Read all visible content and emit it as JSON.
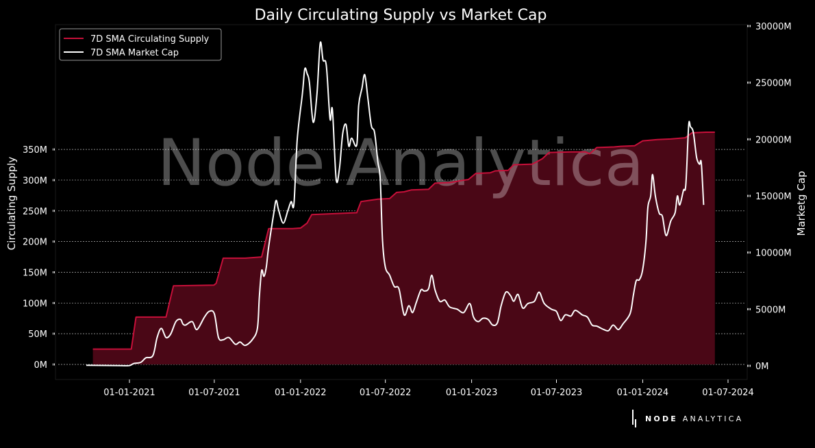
{
  "watermark": "Node Analytica",
  "branding": {
    "bold": "NODE",
    "light": "ANALYTICA"
  },
  "colors": {
    "supply": "#c8103a",
    "supply_fill": "#4a0716",
    "market_cap": "#ffffff",
    "background": "#000000"
  },
  "chart_data": {
    "type": "line",
    "title": "Daily Circulating Supply vs Market Cap",
    "ylabel": "Circulating Supply",
    "y2label": "Marketg Cap",
    "legend_position": "top-left",
    "grid": "horizontal dashed",
    "xticks": [
      "01-01-2021",
      "01-07-2021",
      "01-01-2022",
      "01-07-2022",
      "01-01-2023",
      "01-07-2023",
      "01-01-2024",
      "01-07-2024"
    ],
    "yticks": [
      "0M",
      "50M",
      "100M",
      "150M",
      "200M",
      "250M",
      "300M",
      "350M"
    ],
    "y2ticks": [
      "0M",
      "5000M",
      "10000M",
      "15000M",
      "20000M",
      "25000M",
      "30000M"
    ],
    "ylim": [
      0,
      390
    ],
    "y2lim": [
      0,
      30000
    ],
    "xlim": [
      "2020-09-25",
      "2024-06-30"
    ],
    "series": [
      {
        "name": "7D SMA Circulating Supply",
        "axis": "left",
        "fill": true,
        "points": [
          [
            "2020-10-15",
            25
          ],
          [
            "2020-12-20",
            25
          ],
          [
            "2021-01-05",
            25
          ],
          [
            "2021-01-15",
            77
          ],
          [
            "2021-02-15",
            77
          ],
          [
            "2021-03-10",
            77
          ],
          [
            "2021-03-20",
            77
          ],
          [
            "2021-04-05",
            128
          ],
          [
            "2021-06-30",
            129
          ],
          [
            "2021-07-05",
            132
          ],
          [
            "2021-07-20",
            173
          ],
          [
            "2021-09-05",
            173
          ],
          [
            "2021-10-10",
            175
          ],
          [
            "2021-10-25",
            221
          ],
          [
            "2021-12-15",
            221
          ],
          [
            "2022-01-01",
            222
          ],
          [
            "2022-01-15",
            230
          ],
          [
            "2022-01-25",
            244
          ],
          [
            "2022-05-01",
            247
          ],
          [
            "2022-05-10",
            265
          ],
          [
            "2022-06-15",
            269
          ],
          [
            "2022-07-10",
            270
          ],
          [
            "2022-07-25",
            280
          ],
          [
            "2022-08-10",
            281
          ],
          [
            "2022-08-25",
            284
          ],
          [
            "2022-10-01",
            285
          ],
          [
            "2022-10-15",
            295
          ],
          [
            "2022-11-15",
            296
          ],
          [
            "2022-12-15",
            300
          ],
          [
            "2022-12-25",
            301
          ],
          [
            "2023-01-10",
            311
          ],
          [
            "2023-02-10",
            312
          ],
          [
            "2023-02-20",
            315
          ],
          [
            "2023-03-20",
            316
          ],
          [
            "2023-04-01",
            325
          ],
          [
            "2023-05-10",
            326
          ],
          [
            "2023-05-20",
            330
          ],
          [
            "2023-06-01",
            335
          ],
          [
            "2023-06-15",
            345
          ],
          [
            "2023-08-01",
            346
          ],
          [
            "2023-09-01",
            346
          ],
          [
            "2023-09-10",
            343
          ],
          [
            "2023-09-25",
            353
          ],
          [
            "2023-11-01",
            354
          ],
          [
            "2023-11-15",
            355
          ],
          [
            "2023-12-15",
            356
          ],
          [
            "2024-01-01",
            364
          ],
          [
            "2024-02-01",
            366
          ],
          [
            "2024-03-01",
            367
          ],
          [
            "2024-04-01",
            369
          ],
          [
            "2024-04-15",
            377
          ],
          [
            "2024-05-15",
            378
          ],
          [
            "2024-06-03",
            378
          ]
        ]
      },
      {
        "name": "7D SMA Market Cap",
        "axis": "right",
        "fill": false,
        "points": [
          [
            "2020-10-01",
            50
          ],
          [
            "2020-12-15",
            20
          ],
          [
            "2021-01-01",
            20
          ],
          [
            "2021-01-10",
            200
          ],
          [
            "2021-01-25",
            300
          ],
          [
            "2021-02-05",
            700
          ],
          [
            "2021-02-20",
            900
          ],
          [
            "2021-03-01",
            2500
          ],
          [
            "2021-03-10",
            3300
          ],
          [
            "2021-03-20",
            2500
          ],
          [
            "2021-03-30",
            2800
          ],
          [
            "2021-04-10",
            3900
          ],
          [
            "2021-04-20",
            4100
          ],
          [
            "2021-04-25",
            3700
          ],
          [
            "2021-05-01",
            3600
          ],
          [
            "2021-05-15",
            3900
          ],
          [
            "2021-05-25",
            3200
          ],
          [
            "2021-06-10",
            4300
          ],
          [
            "2021-06-20",
            4800
          ],
          [
            "2021-07-01",
            4600
          ],
          [
            "2021-07-10",
            2500
          ],
          [
            "2021-07-20",
            2300
          ],
          [
            "2021-08-01",
            2500
          ],
          [
            "2021-08-15",
            1900
          ],
          [
            "2021-08-25",
            2100
          ],
          [
            "2021-09-05",
            1800
          ],
          [
            "2021-09-20",
            2300
          ],
          [
            "2021-10-01",
            3300
          ],
          [
            "2021-10-05",
            6000
          ],
          [
            "2021-10-10",
            8400
          ],
          [
            "2021-10-15",
            7900
          ],
          [
            "2021-10-20",
            8700
          ],
          [
            "2021-10-25",
            10500
          ],
          [
            "2021-11-05",
            13500
          ],
          [
            "2021-11-10",
            14600
          ],
          [
            "2021-11-15",
            13800
          ],
          [
            "2021-11-25",
            12600
          ],
          [
            "2021-12-05",
            13700
          ],
          [
            "2021-12-12",
            14500
          ],
          [
            "2021-12-18",
            14300
          ],
          [
            "2021-12-25",
            20000
          ],
          [
            "2022-01-05",
            24000
          ],
          [
            "2022-01-10",
            26200
          ],
          [
            "2022-01-15",
            25800
          ],
          [
            "2022-01-20",
            25000
          ],
          [
            "2022-01-28",
            21500
          ],
          [
            "2022-02-05",
            24000
          ],
          [
            "2022-02-12",
            28500
          ],
          [
            "2022-02-18",
            27000
          ],
          [
            "2022-02-25",
            26500
          ],
          [
            "2022-03-05",
            21800
          ],
          [
            "2022-03-10",
            22600
          ],
          [
            "2022-03-18",
            16500
          ],
          [
            "2022-03-25",
            17400
          ],
          [
            "2022-04-01",
            20500
          ],
          [
            "2022-04-08",
            21300
          ],
          [
            "2022-04-14",
            19400
          ],
          [
            "2022-04-20",
            20100
          ],
          [
            "2022-05-01",
            19500
          ],
          [
            "2022-05-05",
            23000
          ],
          [
            "2022-05-12",
            24500
          ],
          [
            "2022-05-18",
            25700
          ],
          [
            "2022-05-25",
            23500
          ],
          [
            "2022-06-01",
            21200
          ],
          [
            "2022-06-08",
            20600
          ],
          [
            "2022-06-15",
            18000
          ],
          [
            "2022-06-20",
            16500
          ],
          [
            "2022-06-25",
            11000
          ],
          [
            "2022-07-01",
            8700
          ],
          [
            "2022-07-10",
            8000
          ],
          [
            "2022-07-20",
            7000
          ],
          [
            "2022-07-30",
            6800
          ],
          [
            "2022-08-10",
            4500
          ],
          [
            "2022-08-20",
            5300
          ],
          [
            "2022-08-28",
            4700
          ],
          [
            "2022-09-05",
            5600
          ],
          [
            "2022-09-15",
            6700
          ],
          [
            "2022-09-22",
            6600
          ],
          [
            "2022-10-01",
            6800
          ],
          [
            "2022-10-08",
            8000
          ],
          [
            "2022-10-15",
            6700
          ],
          [
            "2022-10-25",
            5700
          ],
          [
            "2022-11-05",
            5800
          ],
          [
            "2022-11-15",
            5200
          ],
          [
            "2022-12-01",
            5000
          ],
          [
            "2022-12-15",
            4700
          ],
          [
            "2022-12-28",
            5500
          ],
          [
            "2023-01-05",
            4300
          ],
          [
            "2023-01-15",
            3900
          ],
          [
            "2023-01-25",
            4200
          ],
          [
            "2023-02-05",
            4100
          ],
          [
            "2023-02-15",
            3600
          ],
          [
            "2023-02-25",
            3800
          ],
          [
            "2023-03-05",
            5300
          ],
          [
            "2023-03-15",
            6500
          ],
          [
            "2023-03-25",
            6200
          ],
          [
            "2023-04-01",
            5700
          ],
          [
            "2023-04-10",
            6300
          ],
          [
            "2023-04-20",
            5100
          ],
          [
            "2023-05-01",
            5500
          ],
          [
            "2023-05-15",
            5700
          ],
          [
            "2023-05-25",
            6500
          ],
          [
            "2023-06-05",
            5500
          ],
          [
            "2023-06-20",
            5000
          ],
          [
            "2023-07-01",
            4800
          ],
          [
            "2023-07-10",
            4000
          ],
          [
            "2023-07-20",
            4500
          ],
          [
            "2023-08-01",
            4400
          ],
          [
            "2023-08-10",
            4900
          ],
          [
            "2023-08-25",
            4500
          ],
          [
            "2023-09-05",
            4300
          ],
          [
            "2023-09-15",
            3600
          ],
          [
            "2023-09-25",
            3500
          ],
          [
            "2023-10-10",
            3200
          ],
          [
            "2023-10-20",
            3100
          ],
          [
            "2023-10-30",
            3600
          ],
          [
            "2023-11-10",
            3200
          ],
          [
            "2023-11-20",
            3700
          ],
          [
            "2023-12-05",
            4600
          ],
          [
            "2023-12-12",
            6200
          ],
          [
            "2023-12-18",
            7500
          ],
          [
            "2023-12-25",
            7600
          ],
          [
            "2024-01-01",
            8500
          ],
          [
            "2024-01-08",
            11000
          ],
          [
            "2024-01-12",
            14000
          ],
          [
            "2024-01-18",
            15000
          ],
          [
            "2024-01-22",
            16900
          ],
          [
            "2024-01-28",
            15000
          ],
          [
            "2024-02-05",
            13500
          ],
          [
            "2024-02-12",
            13200
          ],
          [
            "2024-02-20",
            11500
          ],
          [
            "2024-03-01",
            12800
          ],
          [
            "2024-03-10",
            13500
          ],
          [
            "2024-03-15",
            15000
          ],
          [
            "2024-03-20",
            14200
          ],
          [
            "2024-03-28",
            15500
          ],
          [
            "2024-04-02",
            16000
          ],
          [
            "2024-04-08",
            21200
          ],
          [
            "2024-04-12",
            21100
          ],
          [
            "2024-04-18",
            20600
          ],
          [
            "2024-04-25",
            18400
          ],
          [
            "2024-05-01",
            17800
          ],
          [
            "2024-05-05",
            17900
          ],
          [
            "2024-05-10",
            14200
          ]
        ]
      }
    ]
  }
}
